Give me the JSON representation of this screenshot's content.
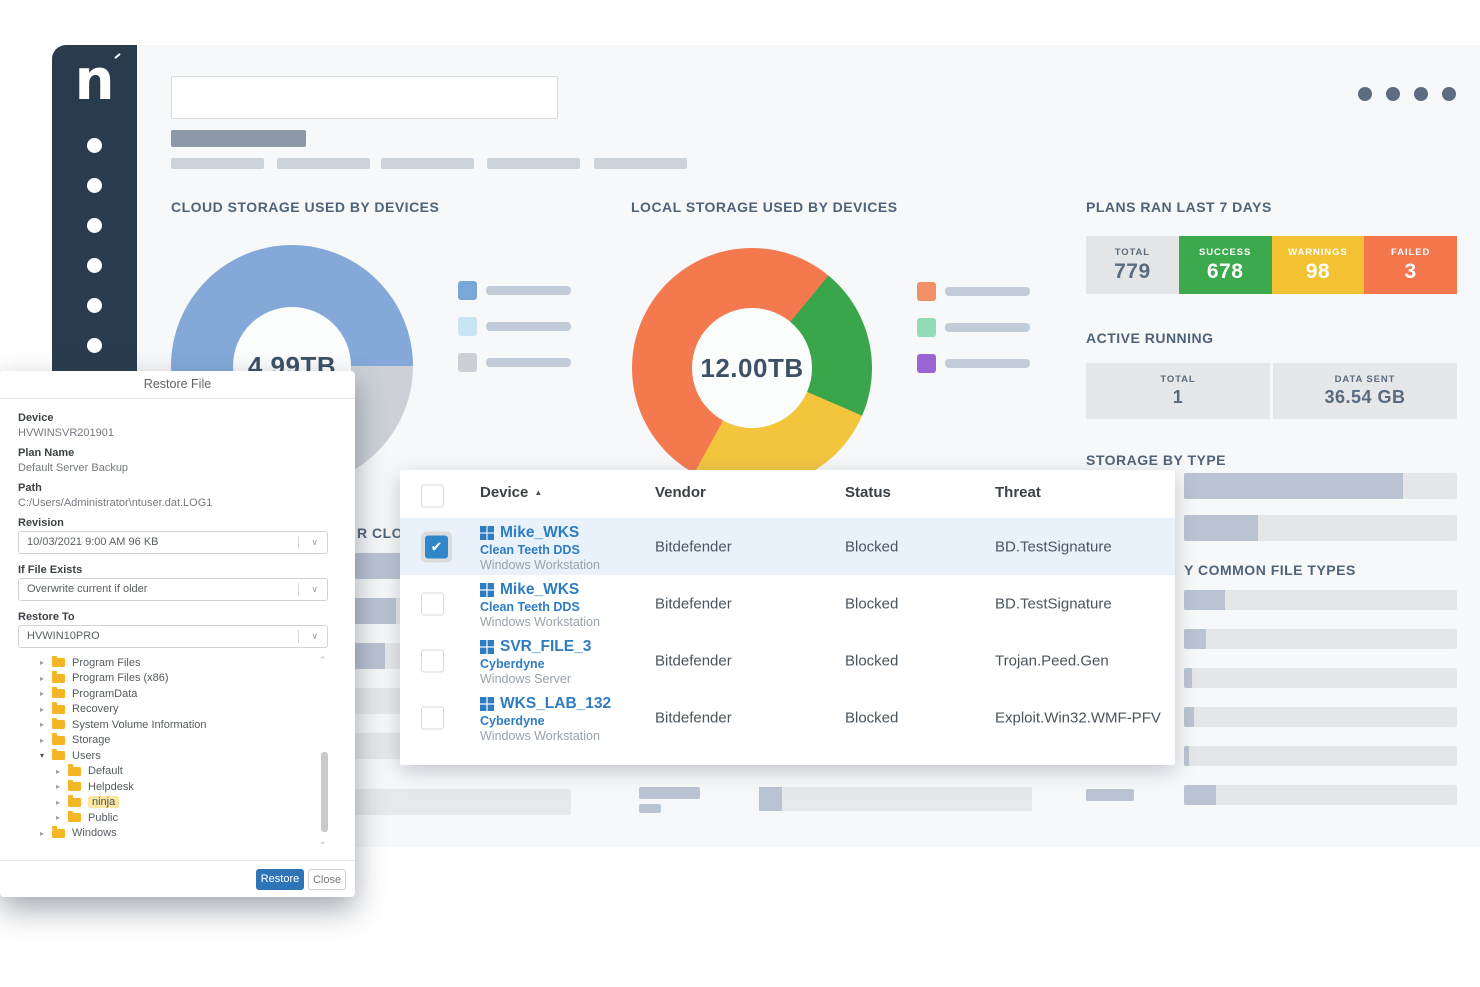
{
  "chrome": {
    "logo": "n",
    "window_dot_count": 4,
    "sidebar_dot_count": 6,
    "search_value": ""
  },
  "sections": {
    "cloud": {
      "title": "CLOUD STORAGE USED BY DEVICES",
      "center": "4.99TB",
      "segments": [
        {
          "color": "#84a9d8",
          "pct": 25
        },
        {
          "color": "#cdd1d5",
          "pct": 16.5
        },
        {
          "color": "#aed4ef",
          "pct": 9.5
        },
        {
          "color": "#44607a",
          "pct": 4.5
        },
        {
          "color": "#84a9d8",
          "pct": 44.5
        }
      ],
      "legend": [
        "#7ba7d8",
        "#c8e4f5",
        "#cccfd3"
      ]
    },
    "local": {
      "title": "LOCAL STORAGE USED BY DEVICES",
      "center": "12.00TB",
      "segments": [
        {
          "color": "#f4794f",
          "pct": 11
        },
        {
          "color": "#3aa64b",
          "pct": 20.5
        },
        {
          "color": "#f2c53d",
          "pct": 26.5
        },
        {
          "color": "#f4794f",
          "pct": 42
        }
      ],
      "legend": [
        "#f09064",
        "#8fdcb6",
        "#9b64d4"
      ]
    },
    "plans": {
      "title": "PLANS RAN LAST 7 DAYS",
      "cells": [
        {
          "label": "TOTAL",
          "value": "779",
          "bg": "#e4e5e6",
          "fg": "#596b7e"
        },
        {
          "label": "SUCCESS",
          "value": "678",
          "bg": "#3ba94c",
          "fg": "#ffffff"
        },
        {
          "label": "WARNINGS",
          "value": "98",
          "bg": "#f2c232",
          "fg": "#ffffff"
        },
        {
          "label": "FAILED",
          "value": "3",
          "bg": "#f4764d",
          "fg": "#ffffff"
        }
      ]
    },
    "active": {
      "title": "ACTIVE RUNNING",
      "cells": [
        {
          "label": "TOTAL",
          "value": "1",
          "bg": "#e6e7e8",
          "fg": "#596b7e"
        },
        {
          "label": "DATA SENT",
          "value": "36.54 GB",
          "bg": "#e6e7e8",
          "fg": "#596b7e"
        }
      ]
    },
    "storage_by_type": {
      "title": "STORAGE BY TYPE",
      "bars": [
        {
          "label_w": 80,
          "fill": 219
        },
        {
          "label_w": 80,
          "fill": 74
        }
      ]
    },
    "file_types": {
      "title": "Y COMMON FILE TYPES",
      "bars": [
        {
          "label_w": 88,
          "fill": 41
        },
        {
          "label_w": 88,
          "fill": 22
        },
        {
          "label_w": 88,
          "fill": 8
        },
        {
          "label_w": 88,
          "fill": 10
        },
        {
          "label_w": 88,
          "fill": 5
        },
        {
          "label_w": 48,
          "fill": 32
        }
      ]
    },
    "left_hidden": {
      "header_visible": "R CLO"
    }
  },
  "table": {
    "columns": [
      "Device",
      "Vendor",
      "Status",
      "Threat"
    ],
    "sort_column": "Device",
    "rows": [
      {
        "checked": true,
        "name": "Mike_WKS",
        "org": "Clean Teeth DDS",
        "type": "Windows Workstation",
        "vendor": "Bitdefender",
        "status": "Blocked",
        "threat": "BD.TestSignature"
      },
      {
        "checked": false,
        "name": "Mike_WKS",
        "org": "Clean Teeth DDS",
        "type": "Windows Workstation",
        "vendor": "Bitdefender",
        "status": "Blocked",
        "threat": "BD.TestSignature"
      },
      {
        "checked": false,
        "name": "SVR_FILE_3",
        "org": "Cyberdyne",
        "type": "Windows Server",
        "vendor": "Bitdefender",
        "status": "Blocked",
        "threat": "Trojan.Peed.Gen"
      },
      {
        "checked": false,
        "name": "WKS_LAB_132",
        "org": "Cyberdyne",
        "type": "Windows Workstation",
        "vendor": "Bitdefender",
        "status": "Blocked",
        "threat": "Exploit.Win32.WMF-PFV"
      }
    ]
  },
  "modal": {
    "title": "Restore File",
    "fields": [
      {
        "label": "Device",
        "value": "HVWINSVR201901"
      },
      {
        "label": "Plan Name",
        "value": "Default Server Backup"
      },
      {
        "label": "Path",
        "value": "C:/Users/Administrator\\ntuser.dat.LOG1"
      }
    ],
    "selects": [
      {
        "label": "Revision",
        "value": "10/03/2021 9:00 AM 96 KB"
      },
      {
        "label": "If File Exists",
        "value": "Overwrite current if older"
      },
      {
        "label": "Restore To",
        "value": "HVWIN10PRO"
      }
    ],
    "tree": [
      {
        "label": "Program Files",
        "depth": 0
      },
      {
        "label": "Program Files (x86)",
        "depth": 0
      },
      {
        "label": "ProgramData",
        "depth": 0
      },
      {
        "label": "Recovery",
        "depth": 0
      },
      {
        "label": "System Volume Information",
        "depth": 0
      },
      {
        "label": "Storage",
        "depth": 0
      },
      {
        "label": "Users",
        "depth": 0,
        "expanded": true
      },
      {
        "label": "Default",
        "depth": 1
      },
      {
        "label": "Helpdesk",
        "depth": 1
      },
      {
        "label": "ninja",
        "depth": 1,
        "selected": true
      },
      {
        "label": "Public",
        "depth": 1
      },
      {
        "label": "Windows",
        "depth": 0
      }
    ],
    "buttons": {
      "restore": "Restore",
      "close": "Close"
    }
  }
}
